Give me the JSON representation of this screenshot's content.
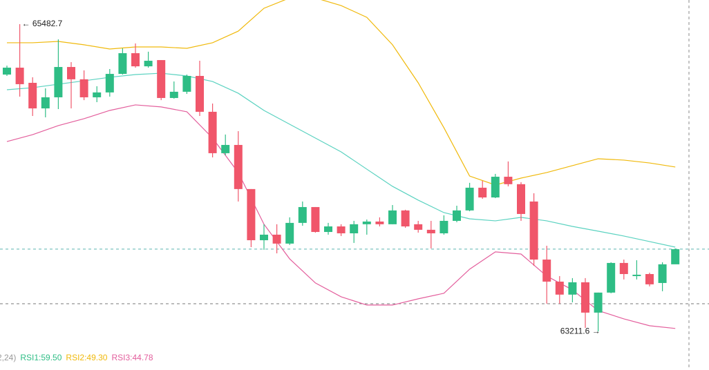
{
  "chart_data": {
    "type": "candlestick",
    "up_color": "#2ebd85",
    "down_color": "#f0566a",
    "ylim": [
      62927,
      65661
    ],
    "candles": {
      "open": [
        65110,
        65161,
        65049,
        64860,
        64942,
        65166,
        65075,
        64942,
        64978,
        65115,
        65268,
        65171,
        65217,
        64937,
        64983,
        65100,
        64835,
        64529,
        64590,
        64264,
        63886,
        63927,
        63861,
        64014,
        64131,
        63947,
        63988,
        63937,
        64004,
        64024,
        64004,
        64106,
        64004,
        63963,
        63937,
        64029,
        64106,
        64274,
        64202,
        64355,
        64300,
        64172,
        63743,
        63580,
        63484,
        63575,
        63351,
        63499,
        63718,
        63621,
        63636,
        63570,
        63708
      ],
      "close": [
        65161,
        65039,
        64860,
        64942,
        65166,
        65075,
        64942,
        64978,
        65115,
        65268,
        65171,
        65212,
        64937,
        64983,
        65100,
        64835,
        64529,
        64590,
        64264,
        63886,
        63927,
        63861,
        64014,
        64131,
        63947,
        63988,
        63937,
        64004,
        64024,
        64004,
        64106,
        63988,
        63963,
        63937,
        64029,
        64106,
        64274,
        64202,
        64355,
        64300,
        64080,
        63743,
        63580,
        63484,
        63575,
        63351,
        63499,
        63718,
        63636,
        63631,
        63560,
        63708,
        63820
      ],
      "high": [
        65176,
        65482.7,
        65090,
        65008,
        65370,
        65202,
        65141,
        65024,
        65151,
        65304,
        65340,
        65279,
        65217,
        65059,
        65110,
        65212,
        64896,
        64667,
        64692,
        64264,
        64004,
        64004,
        64055,
        64172,
        64131,
        64014,
        64004,
        64029,
        64039,
        64055,
        64146,
        64111,
        64029,
        64029,
        64070,
        64141,
        64310,
        64325,
        64376,
        64468,
        64315,
        64233,
        63845,
        63621,
        63606,
        63606,
        63499,
        63723,
        63743,
        63738,
        63646,
        63723,
        63825
      ],
      "low": [
        65100,
        64947,
        64804,
        64794,
        64855,
        64860,
        64921,
        64906,
        64947,
        65110,
        65161,
        65161,
        64921,
        64932,
        64967,
        64804,
        64498,
        64514,
        64172,
        63835,
        63815,
        63789,
        63851,
        63993,
        63942,
        63927,
        63917,
        63866,
        63927,
        63988,
        64004,
        63978,
        63942,
        63825,
        63927,
        64019,
        64100,
        64192,
        64197,
        64284,
        64029,
        63697,
        63417,
        63417,
        63427,
        63238,
        63211.6,
        63494,
        63596,
        63596,
        63545,
        63509,
        63713
      ]
    },
    "lines": [
      {
        "color": "#f0b90b",
        "x": [
          0,
          2,
          4,
          6,
          8,
          10,
          12,
          14,
          16,
          18,
          20,
          22,
          24,
          26,
          28,
          30,
          32,
          34,
          36,
          38,
          40,
          42,
          44,
          46,
          48,
          50,
          52
        ],
        "values": [
          65345,
          65345,
          65355,
          65330,
          65299,
          65314,
          65314,
          65304,
          65345,
          65431,
          65600,
          65676,
          65676,
          65620,
          65533,
          65330,
          65049,
          64717,
          64360,
          64294,
          64345,
          64386,
          64437,
          64488,
          64478,
          64457,
          64427
        ]
      },
      {
        "color": "#5ad2c0",
        "x": [
          0,
          2,
          4,
          6,
          8,
          10,
          12,
          14,
          16,
          18,
          20,
          22,
          24,
          26,
          28,
          30,
          32,
          34,
          36,
          38,
          40,
          42,
          44,
          46,
          48,
          50,
          52
        ],
        "values": [
          64998,
          65013,
          65039,
          65064,
          65090,
          65110,
          65120,
          65100,
          65059,
          64972,
          64845,
          64743,
          64641,
          64539,
          64411,
          64284,
          64182,
          64090,
          64044,
          64029,
          64055,
          64029,
          63988,
          63953,
          63917,
          63876,
          63835
        ]
      },
      {
        "color": "#e35e9c",
        "x": [
          0,
          2,
          4,
          6,
          8,
          10,
          12,
          14,
          16,
          18,
          20,
          22,
          24,
          26,
          28,
          30,
          32,
          34,
          36,
          38,
          40,
          42,
          44,
          46,
          48,
          50,
          52
        ],
        "values": [
          64615,
          64666,
          64733,
          64784,
          64845,
          64886,
          64871,
          64835,
          64641,
          64386,
          64004,
          63748,
          63570,
          63468,
          63407,
          63407,
          63453,
          63494,
          63672,
          63800,
          63784,
          63621,
          63519,
          63366,
          63305,
          63254,
          63234
        ]
      }
    ],
    "annotations": [
      {
        "text": "← 65482.7",
        "candle": 1,
        "at": "high"
      },
      {
        "text": "63211.6 →",
        "candle": 46,
        "at": "low"
      }
    ],
    "legend": [
      {
        "text": "2,24)",
        "color": "#999999"
      },
      {
        "text": "RSI1:59.50",
        "color": "#2ebd85"
      },
      {
        "text": "RSI2:49.30",
        "color": "#f0b90b"
      },
      {
        "text": "RSI3:44.78",
        "color": "#e35e9c"
      }
    ]
  }
}
